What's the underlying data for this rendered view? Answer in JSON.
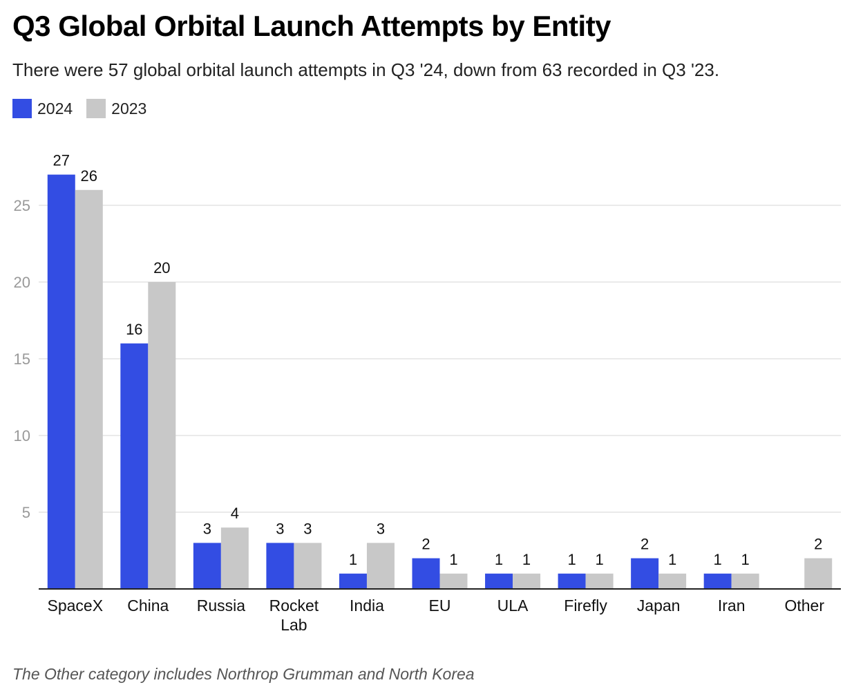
{
  "title": "Q3 Global Orbital Launch Attempts by Entity",
  "subtitle": "There were 57 global orbital launch attempts in Q3 '24, down from 63 recorded in Q3 '23.",
  "footnote": "The Other category includes Northrop Grumman and North Korea",
  "colors": {
    "2024": "#334de3",
    "2023": "#c8c8c8"
  },
  "chart_data": {
    "type": "bar",
    "categories": [
      "SpaceX",
      "China",
      "Russia",
      "Rocket Lab",
      "India",
      "EU",
      "ULA",
      "Firefly",
      "Japan",
      "Iran",
      "Other"
    ],
    "category_lines": [
      [
        "SpaceX"
      ],
      [
        "China"
      ],
      [
        "Russia"
      ],
      [
        "Rocket",
        "Lab"
      ],
      [
        "India"
      ],
      [
        "EU"
      ],
      [
        "ULA"
      ],
      [
        "Firefly"
      ],
      [
        "Japan"
      ],
      [
        "Iran"
      ],
      [
        "Other"
      ]
    ],
    "series": [
      {
        "name": "2024",
        "color": "#334de3",
        "values": [
          27,
          16,
          3,
          3,
          1,
          2,
          1,
          1,
          2,
          1,
          null
        ]
      },
      {
        "name": "2023",
        "color": "#c8c8c8",
        "values": [
          26,
          20,
          4,
          3,
          3,
          1,
          1,
          1,
          1,
          1,
          2
        ]
      }
    ],
    "ylim": [
      0,
      28
    ],
    "yticks": [
      5,
      10,
      15,
      20,
      25
    ],
    "grid": true,
    "data_labels": true,
    "legend": "top-left"
  }
}
